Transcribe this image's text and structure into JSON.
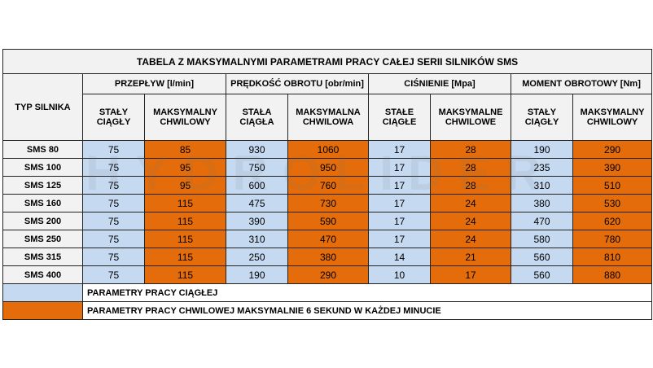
{
  "title": "TABELA Z MAKSYMALNYMI PARAMETRAMI PRACY CAŁEJ SERII SILNIKÓW SMS",
  "first_header": "TYP SILNIKA",
  "groups": [
    {
      "label": "PRZEPŁYW [l/min]",
      "sub": [
        "STAŁY CIĄGŁY",
        "MAKSYMALNY CHWILOWY"
      ]
    },
    {
      "label": "PRĘDKOŚĆ OBROTU [obr/min]",
      "sub": [
        "STAŁA CIĄGŁA",
        "MAKSYMALNA CHWILOWA"
      ]
    },
    {
      "label": "CIŚNIENIE [Mpa]",
      "sub": [
        "STAŁE CIĄGŁE",
        "MAKSYMALNE CHWILOWE"
      ]
    },
    {
      "label": "MOMENT OBROTOWY [Nm]",
      "sub": [
        "STAŁY CIĄGŁY",
        "MAKSYMALNY CHWILOWY"
      ]
    }
  ],
  "rows": [
    {
      "name": "SMS 80",
      "values": [
        75,
        85,
        930,
        1060,
        17,
        28,
        190,
        290
      ]
    },
    {
      "name": "SMS 100",
      "values": [
        75,
        95,
        750,
        950,
        17,
        28,
        235,
        390
      ]
    },
    {
      "name": "SMS 125",
      "values": [
        75,
        95,
        600,
        760,
        17,
        28,
        310,
        510
      ]
    },
    {
      "name": "SMS 160",
      "values": [
        75,
        115,
        475,
        730,
        17,
        24,
        380,
        530
      ]
    },
    {
      "name": "SMS 200",
      "values": [
        75,
        115,
        390,
        590,
        17,
        24,
        470,
        620
      ]
    },
    {
      "name": "SMS 250",
      "values": [
        75,
        115,
        310,
        470,
        17,
        24,
        580,
        780
      ]
    },
    {
      "name": "SMS 315",
      "values": [
        75,
        115,
        250,
        380,
        14,
        21,
        560,
        810
      ]
    },
    {
      "name": "SMS 400",
      "values": [
        75,
        115,
        190,
        290,
        10,
        17,
        560,
        880
      ]
    }
  ],
  "legend": [
    "PARAMETRY PRACY CIĄGŁEJ",
    "PARAMETRY PRACY CHWILOWEJ MAKSYMALNIE 6 SEKUND W KAŻDEJ MINUCIE"
  ],
  "watermark": "HYDROLIDER"
}
